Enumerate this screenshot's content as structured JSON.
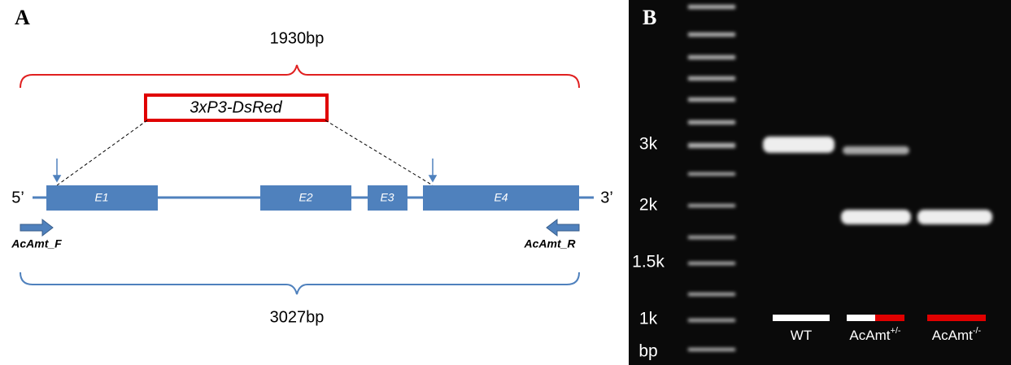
{
  "panel_a": {
    "label": "A",
    "top_bracket": "1930bp",
    "insert": "3xP3-DsRed",
    "five_prime": "5’",
    "three_prime": "3’",
    "exons": [
      "E1",
      "E2",
      "E3",
      "E4"
    ],
    "primer_f": "AcAmt_F",
    "primer_r": "AcAmt_R",
    "bottom_bracket": "3027bp"
  },
  "panel_b": {
    "label": "B",
    "ladder": [
      "3k",
      "2k",
      "1.5k",
      "1k",
      "bp"
    ],
    "lanes": [
      {
        "base": "WT"
      },
      {
        "base": "AcAmt",
        "sup": "+/-"
      },
      {
        "base": "AcAmt",
        "sup": "-/-"
      }
    ]
  }
}
